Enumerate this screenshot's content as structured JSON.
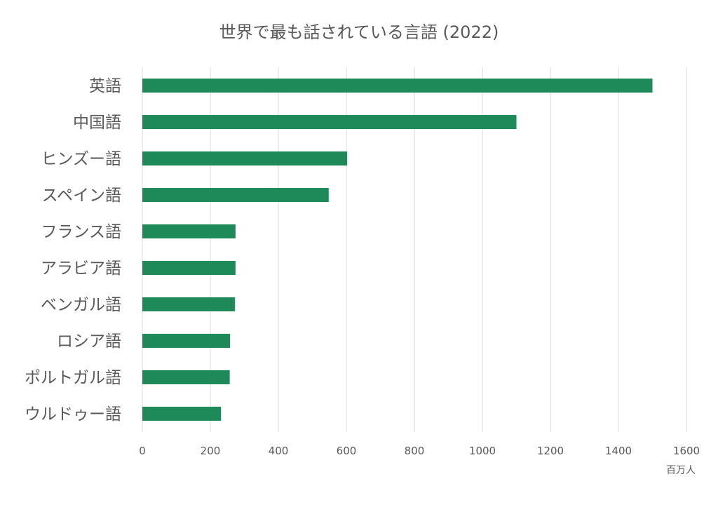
{
  "chart_data": {
    "type": "bar",
    "orientation": "horizontal",
    "title": "世界で最も話されている言語 (2022)",
    "xlabel": "百万人",
    "ylabel": "",
    "categories": [
      "英語",
      "中国語",
      "ヒンズー語",
      "スペイン語",
      "フランス語",
      "アラビア語",
      "ベンガル語",
      "ロシア語",
      "ポルトガル語",
      "ウルドゥー語"
    ],
    "values": [
      1500,
      1100,
      602,
      548,
      274,
      274,
      272,
      258,
      257,
      231
    ],
    "xlim": [
      0,
      1600
    ],
    "xticks": [
      "0",
      "200",
      "400",
      "600",
      "800",
      "1000",
      "1200",
      "1400",
      "1600"
    ],
    "grid": "vertical",
    "legend": "none",
    "bar_color": "#1e8a5a"
  }
}
